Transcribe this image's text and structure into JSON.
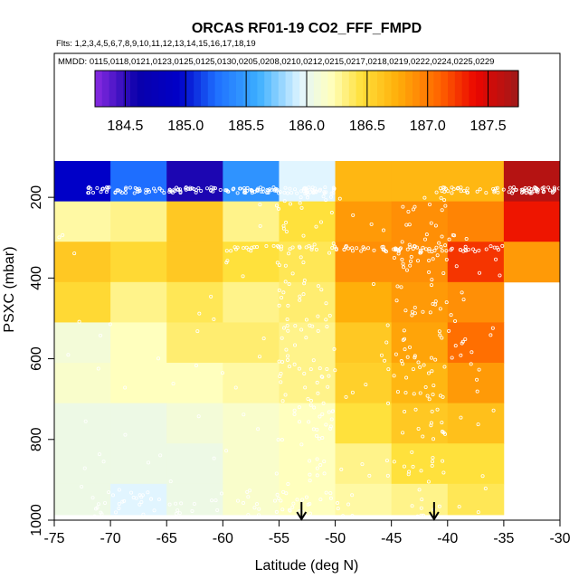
{
  "chart_data": {
    "type": "heatmap",
    "title": "ORCAS RF01-19 CO2_FFF_FMPD",
    "flights_line": "Flts: 1,2,3,4,5,6,7,8,9,10,11,12,13,14,15,16,17,18,19",
    "dates_line": "MMDD: 0115,0118,0121,0123,0125,0125,0130,0205,0208,0210,0212,0215,0217,0218,0219,0222,0224,0225,0229",
    "xlabel": "Latitude (deg N)",
    "ylabel": "PSXC (mbar)",
    "xlim": [
      -75,
      -30
    ],
    "ylim": [
      1000,
      110
    ],
    "y_reversed": true,
    "x_ticks": [
      -75,
      -70,
      -65,
      -60,
      -55,
      -50,
      -45,
      -40,
      -35,
      -30
    ],
    "y_ticks": [
      200,
      400,
      600,
      800,
      1000
    ],
    "colorbar": {
      "ticks": [
        184.5,
        185.0,
        185.5,
        186.0,
        186.5,
        187.0,
        187.5
      ],
      "range": [
        184.25,
        187.75
      ]
    },
    "x_bin_edges": [
      -75,
      -70,
      -65,
      -60,
      -55,
      -50,
      -45,
      -40,
      -35,
      -30
    ],
    "y_bin_edges": [
      110,
      210,
      310,
      410,
      510,
      610,
      710,
      810,
      910,
      1010
    ],
    "cells": [
      [
        184.95,
        185.25,
        184.55,
        185.45,
        185.95,
        186.7,
        186.7,
        186.7,
        187.65
      ],
      [
        186.25,
        186.3,
        186.6,
        186.3,
        186.45,
        186.85,
        186.9,
        186.95,
        187.35
      ],
      [
        186.6,
        186.5,
        186.6,
        186.45,
        186.4,
        186.9,
        186.9,
        187.25,
        186.85
      ],
      [
        186.5,
        186.3,
        186.4,
        186.3,
        186.35,
        186.75,
        186.85,
        186.9,
        null
      ],
      [
        186.1,
        186.2,
        186.35,
        186.35,
        186.3,
        186.6,
        186.8,
        187.05,
        null
      ],
      [
        186.15,
        186.2,
        186.2,
        186.25,
        186.3,
        186.55,
        186.7,
        186.85,
        null
      ],
      [
        186.05,
        186.05,
        186.1,
        186.15,
        186.2,
        186.45,
        186.6,
        186.65,
        null
      ],
      [
        186.05,
        186.05,
        186.05,
        186.15,
        186.2,
        186.3,
        186.45,
        186.45,
        null
      ],
      [
        186.05,
        185.95,
        186.05,
        186.15,
        186.2,
        186.25,
        186.3,
        186.4,
        null
      ]
    ],
    "arrows_latitude": [
      -53,
      -41.2
    ],
    "legend": "none",
    "grid": false
  }
}
